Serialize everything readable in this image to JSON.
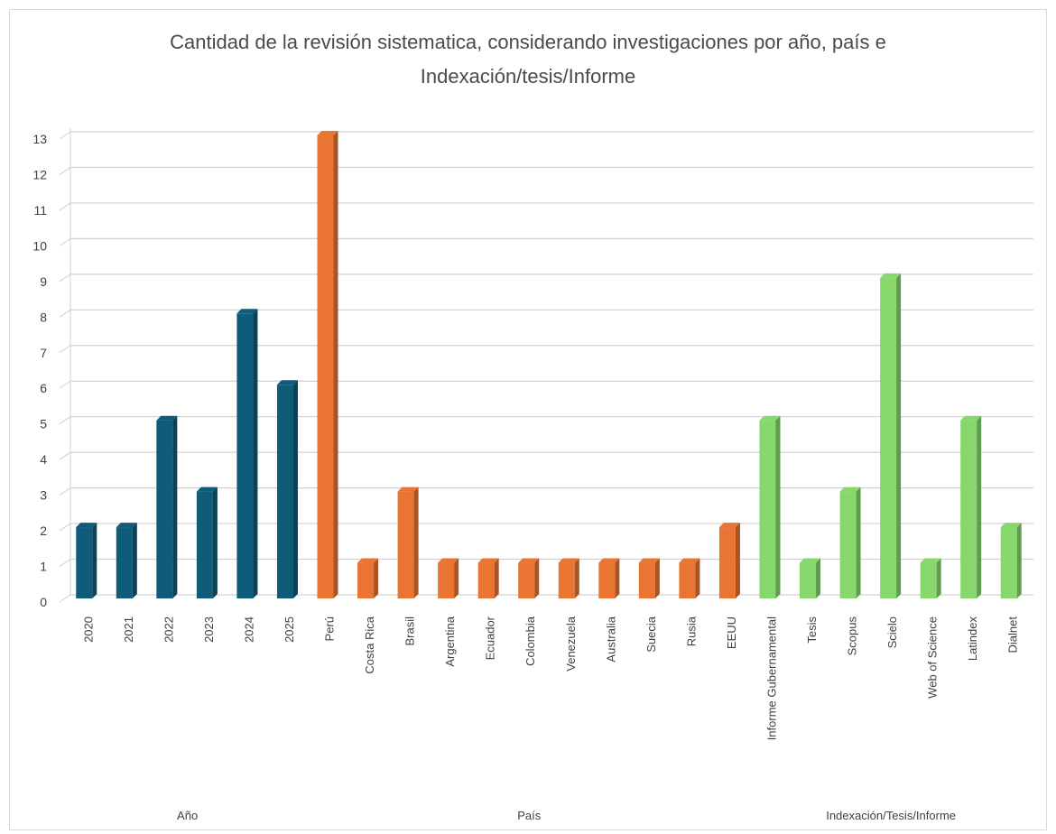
{
  "chart_data": {
    "type": "bar",
    "title_line1": "Cantidad de la revisión sistematica, considerando investigaciones por año, país e",
    "title_line2": "Indexación/tesis/Informe",
    "ylim": [
      0,
      13
    ],
    "y_ticks": [
      "0",
      "1",
      "2",
      "3",
      "4",
      "5",
      "6",
      "7",
      "8",
      "9",
      "10",
      "11",
      "12",
      "13"
    ],
    "grid": true,
    "groups": [
      {
        "name": "Año",
        "color": "#0f5b7a",
        "categories": [
          "2020",
          "2021",
          "2022",
          "2023",
          "2024",
          "2025"
        ],
        "values": [
          2,
          2,
          5,
          3,
          8,
          6
        ]
      },
      {
        "name": "País",
        "color": "#ea7432",
        "categories": [
          "Perú",
          "Costa Rica",
          "Brasil",
          "Argentina",
          "Ecuador",
          "Colombia",
          "Venezuela",
          "Australia",
          "Suecia",
          "Rusia",
          "EEUU"
        ],
        "values": [
          13,
          1,
          3,
          1,
          1,
          1,
          1,
          1,
          1,
          1,
          2
        ]
      },
      {
        "name": "Indexación/Tesis/Informe",
        "color": "#86d86c",
        "categories": [
          "Informe Gubernamental",
          "Tesis",
          "Scopus",
          "Scielo",
          "Web of Science",
          "Latindex",
          "Dialnet"
        ],
        "values": [
          5,
          1,
          3,
          9,
          1,
          5,
          2
        ]
      }
    ]
  }
}
